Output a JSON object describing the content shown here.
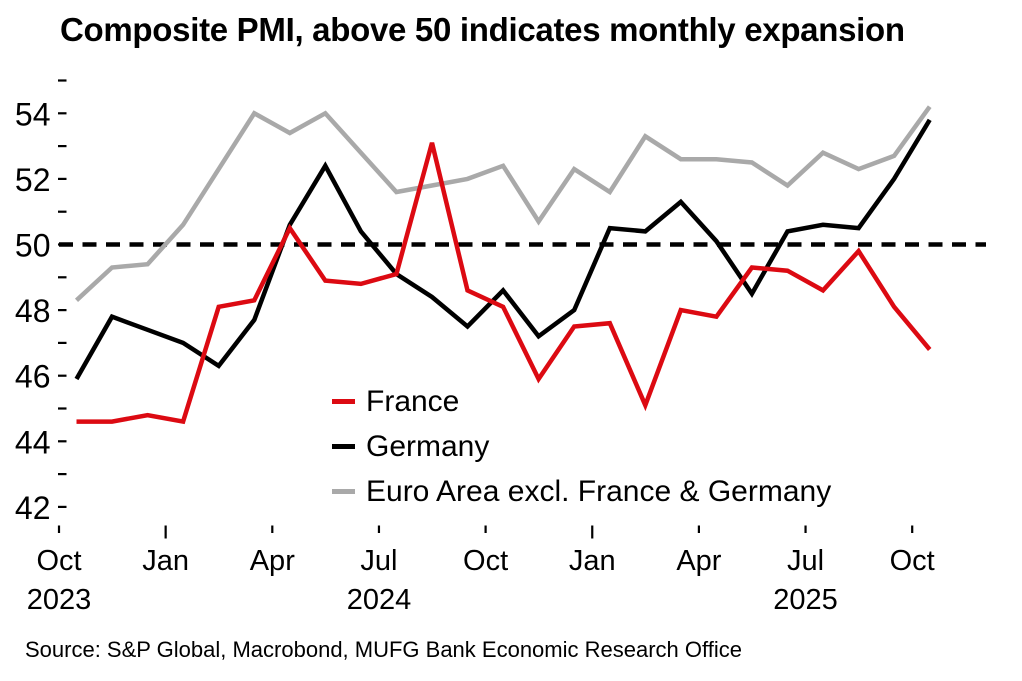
{
  "title": "Composite PMI, above 50 indicates monthly expansion",
  "source": "Source: S&P Global, Macrobond, MUFG Bank Economic Research Office",
  "chart_data": {
    "type": "line",
    "title": "Composite PMI, above 50 indicates monthly expansion",
    "xlabel": "",
    "ylabel": "",
    "ylim": [
      42,
      55
    ],
    "y_tick_step": 1,
    "y_label_step": 2,
    "y_label_values": [
      42,
      44,
      46,
      48,
      50,
      52,
      54
    ],
    "grid": false,
    "refline": {
      "value": 50,
      "style": "dashed",
      "color": "#000000"
    },
    "legend_position": "inside-lower-center",
    "x": [
      "Oct 2023",
      "Nov 2023",
      "Dec 2023",
      "Jan 2024",
      "Feb 2024",
      "Mar 2024",
      "Apr 2024",
      "May 2024",
      "Jun 2024",
      "Jul 2024",
      "Aug 2024",
      "Sep 2024",
      "Oct 2024",
      "Nov 2024",
      "Dec 2024",
      "Jan 2025",
      "Feb 2025",
      "Mar 2025",
      "Apr 2025",
      "May 2025",
      "Jun 2025",
      "Jul 2025",
      "Aug 2025",
      "Sep 2025",
      "Oct 2025"
    ],
    "x_tick_labels": [
      "Oct",
      "Jan",
      "Apr",
      "Jul",
      "Oct",
      "Jan",
      "Apr",
      "Jul",
      "Oct"
    ],
    "x_tick_month_indices": [
      0,
      3,
      6,
      9,
      12,
      15,
      18,
      21,
      24
    ],
    "year_labels": [
      {
        "text": "2023",
        "tick_index": 0
      },
      {
        "text": "2024",
        "tick_index": 3
      },
      {
        "text": "2025",
        "tick_index": 7
      }
    ],
    "series": [
      {
        "name": "France",
        "color": "#dc0a12",
        "values": [
          44.6,
          44.6,
          44.8,
          44.6,
          48.1,
          48.3,
          50.5,
          48.9,
          48.8,
          49.1,
          53.1,
          48.6,
          48.1,
          45.9,
          47.5,
          47.6,
          45.1,
          48.0,
          47.8,
          49.3,
          49.2,
          48.6,
          49.8,
          48.1,
          46.8
        ]
      },
      {
        "name": "Germany",
        "color": "#000000",
        "values": [
          45.9,
          47.8,
          47.4,
          47.0,
          46.3,
          47.7,
          50.6,
          52.4,
          50.4,
          49.1,
          48.4,
          47.5,
          48.6,
          47.2,
          48.0,
          50.5,
          50.4,
          51.3,
          50.1,
          48.5,
          50.4,
          50.6,
          50.5,
          52.0,
          53.8
        ]
      },
      {
        "name": "Euro Area excl. France & Germany",
        "color": "#a9a9a9",
        "values": [
          48.3,
          49.3,
          49.4,
          50.6,
          52.3,
          54.0,
          53.4,
          54.0,
          52.8,
          51.6,
          51.8,
          52.0,
          52.4,
          50.7,
          52.3,
          51.6,
          53.3,
          52.6,
          52.6,
          52.5,
          51.8,
          52.8,
          52.3,
          52.7,
          54.2
        ]
      }
    ]
  }
}
